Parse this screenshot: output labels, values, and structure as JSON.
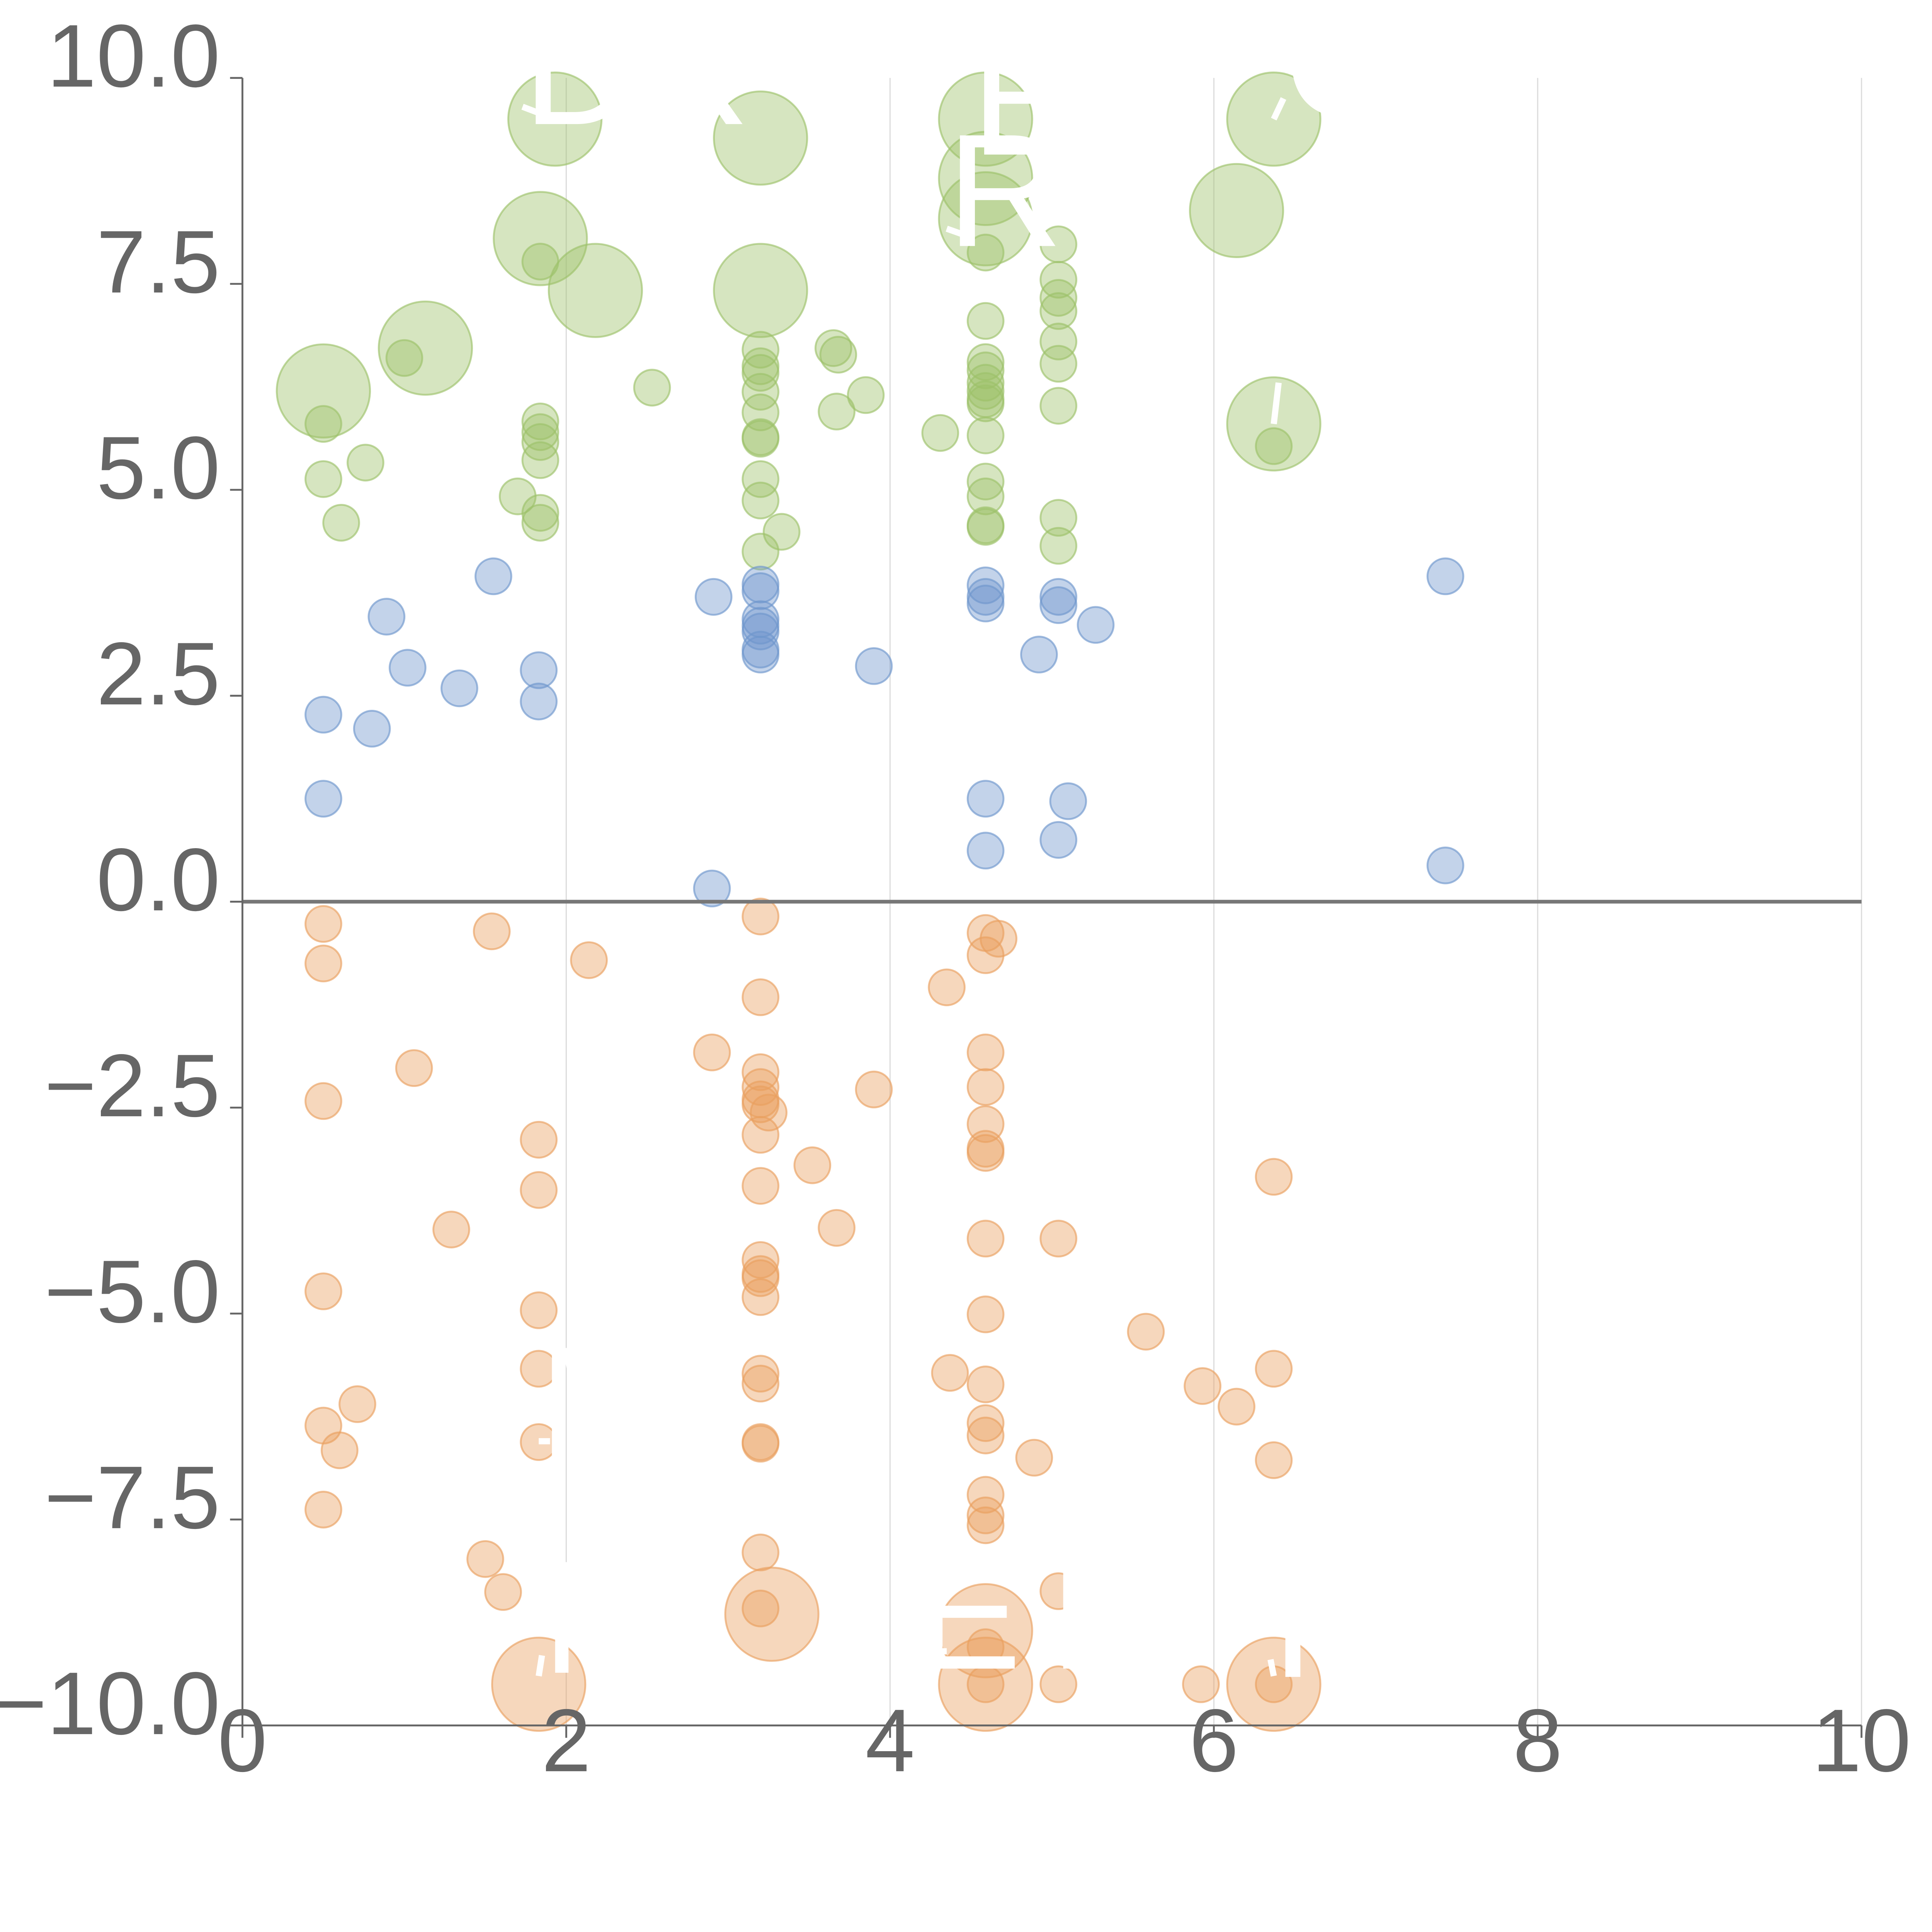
{
  "chart_data": {
    "type": "scatter",
    "title": "",
    "xlabel": "",
    "ylabel": "",
    "xlim": [
      0,
      10
    ],
    "ylim": [
      -10,
      10
    ],
    "xticks": [
      0,
      2,
      4,
      6,
      8,
      10
    ],
    "xtick_labels": [
      "0",
      "2",
      "4",
      "6",
      "8",
      "10"
    ],
    "yticks": [
      10,
      7.5,
      5,
      2.5,
      0,
      -2.5,
      -5,
      -7.5,
      -10
    ],
    "ytick_labels": [
      "10.0",
      "7.5",
      "5.0",
      "2.5",
      "0.0",
      "−2.5",
      "−5.0",
      "−7.5",
      "−10.0"
    ],
    "vertical_grid": true,
    "zero_line": true,
    "series": [
      {
        "name": "green",
        "color": "#9dc16a",
        "points": [
          [
            0.5,
            6.2,
            2.6
          ],
          [
            1.13,
            6.72,
            2.6
          ],
          [
            1.84,
            8.05,
            2.6
          ],
          [
            1.93,
            9.5,
            2.6
          ],
          [
            2.18,
            7.42,
            2.6
          ],
          [
            3.2,
            9.27,
            2.6
          ],
          [
            3.2,
            7.42,
            2.6
          ],
          [
            4.59,
            9.5,
            2.6
          ],
          [
            4.59,
            8.78,
            2.6
          ],
          [
            4.59,
            8.29,
            2.6
          ],
          [
            6.14,
            8.39,
            2.6
          ],
          [
            6.37,
            9.5,
            2.6
          ],
          [
            6.37,
            5.8,
            2.6
          ],
          [
            0.5,
            5.8,
            1
          ],
          [
            0.5,
            5.13,
            1
          ],
          [
            0.61,
            4.6,
            1
          ],
          [
            0.76,
            5.33,
            1
          ],
          [
            1.0,
            6.6,
            1
          ],
          [
            1.7,
            4.92,
            1
          ],
          [
            1.84,
            7.77,
            1
          ],
          [
            1.84,
            5.83,
            1
          ],
          [
            1.84,
            5.7,
            1
          ],
          [
            1.84,
            5.58,
            1
          ],
          [
            1.84,
            5.36,
            1
          ],
          [
            1.84,
            4.72,
            1
          ],
          [
            1.84,
            4.6,
            1
          ],
          [
            2.53,
            6.24,
            1
          ],
          [
            3.2,
            6.7,
            1
          ],
          [
            3.2,
            6.5,
            1
          ],
          [
            3.2,
            6.42,
            1
          ],
          [
            3.2,
            6.19,
            1
          ],
          [
            3.2,
            5.94,
            1
          ],
          [
            3.2,
            5.64,
            1
          ],
          [
            3.2,
            5.62,
            1
          ],
          [
            3.2,
            5.13,
            1
          ],
          [
            3.2,
            4.87,
            1
          ],
          [
            3.2,
            4.25,
            1
          ],
          [
            3.33,
            4.49,
            1
          ],
          [
            3.65,
            6.72,
            1
          ],
          [
            3.68,
            6.64,
            1
          ],
          [
            3.67,
            5.95,
            1
          ],
          [
            3.85,
            6.15,
            1
          ],
          [
            4.31,
            5.69,
            1
          ],
          [
            4.59,
            7.88,
            1
          ],
          [
            4.59,
            7.05,
            1
          ],
          [
            4.59,
            6.55,
            1
          ],
          [
            4.59,
            6.45,
            1
          ],
          [
            4.59,
            6.3,
            1
          ],
          [
            4.59,
            6.2,
            1
          ],
          [
            4.59,
            6.1,
            1
          ],
          [
            4.59,
            6.05,
            1
          ],
          [
            4.59,
            5.66,
            1
          ],
          [
            4.59,
            5.1,
            1
          ],
          [
            4.59,
            4.92,
            1
          ],
          [
            4.59,
            4.57,
            1
          ],
          [
            4.59,
            4.55,
            1
          ],
          [
            5.04,
            7.98,
            1
          ],
          [
            5.04,
            7.55,
            1
          ],
          [
            5.04,
            7.33,
            1
          ],
          [
            5.04,
            7.17,
            1
          ],
          [
            5.04,
            6.8,
            1
          ],
          [
            5.04,
            6.53,
            1
          ],
          [
            5.04,
            6.02,
            1
          ],
          [
            5.04,
            4.66,
            1
          ],
          [
            5.04,
            4.32,
            1
          ],
          [
            6.37,
            5.53,
            1
          ]
        ]
      },
      {
        "name": "blue",
        "color": "#6f96cd",
        "points": [
          [
            0.5,
            2.27,
            1
          ],
          [
            0.5,
            1.25,
            1
          ],
          [
            0.8,
            2.1,
            1
          ],
          [
            0.89,
            3.46,
            1
          ],
          [
            1.02,
            2.84,
            1
          ],
          [
            1.34,
            2.59,
            1
          ],
          [
            1.55,
            3.95,
            1
          ],
          [
            1.83,
            2.81,
            1
          ],
          [
            1.83,
            2.43,
            1
          ],
          [
            2.91,
            3.7,
            1
          ],
          [
            2.9,
            0.16,
            1
          ],
          [
            3.2,
            3.85,
            1
          ],
          [
            3.2,
            3.77,
            1
          ],
          [
            3.2,
            3.43,
            1
          ],
          [
            3.2,
            3.35,
            1
          ],
          [
            3.2,
            3.28,
            1
          ],
          [
            3.2,
            3.06,
            1
          ],
          [
            3.2,
            3.0,
            1
          ],
          [
            3.9,
            2.86,
            1
          ],
          [
            4.59,
            3.84,
            1
          ],
          [
            4.59,
            3.7,
            1
          ],
          [
            4.59,
            3.62,
            1
          ],
          [
            4.59,
            1.25,
            1
          ],
          [
            4.59,
            0.62,
            1
          ],
          [
            4.92,
            3.0,
            1
          ],
          [
            5.04,
            3.7,
            1
          ],
          [
            5.04,
            3.6,
            1
          ],
          [
            5.04,
            0.75,
            1
          ],
          [
            5.1,
            1.22,
            1
          ],
          [
            5.27,
            3.36,
            1
          ],
          [
            7.43,
            3.95,
            1
          ],
          [
            7.43,
            0.44,
            1
          ]
        ]
      },
      {
        "name": "orange",
        "color": "#ea9f5f",
        "points": [
          [
            0.5,
            -0.27,
            1
          ],
          [
            0.5,
            -0.75,
            1
          ],
          [
            0.5,
            -2.42,
            1
          ],
          [
            0.5,
            -4.73,
            1
          ],
          [
            0.5,
            -6.36,
            1
          ],
          [
            0.5,
            -7.38,
            1
          ],
          [
            0.6,
            -6.66,
            1
          ],
          [
            0.71,
            -6.1,
            1
          ],
          [
            1.06,
            -2.02,
            1
          ],
          [
            1.29,
            -3.98,
            1
          ],
          [
            1.5,
            -7.98,
            1
          ],
          [
            1.54,
            -0.36,
            1
          ],
          [
            1.61,
            -8.38,
            1
          ],
          [
            1.83,
            -2.89,
            1
          ],
          [
            1.83,
            -3.5,
            1
          ],
          [
            1.83,
            -4.96,
            1
          ],
          [
            1.83,
            -5.67,
            1
          ],
          [
            1.83,
            -6.56,
            1
          ],
          [
            2.14,
            -0.71,
            1
          ],
          [
            2.9,
            -1.83,
            1
          ],
          [
            3.2,
            -0.18,
            1
          ],
          [
            3.2,
            -1.16,
            1
          ],
          [
            3.2,
            -2.07,
            1
          ],
          [
            3.2,
            -2.25,
            1
          ],
          [
            3.2,
            -2.4,
            1
          ],
          [
            3.2,
            -2.46,
            1
          ],
          [
            3.25,
            -2.56,
            1
          ],
          [
            3.2,
            -2.83,
            1
          ],
          [
            3.2,
            -3.45,
            1
          ],
          [
            3.2,
            -4.35,
            1
          ],
          [
            3.2,
            -4.52,
            1
          ],
          [
            3.2,
            -4.57,
            1
          ],
          [
            3.2,
            -4.8,
            1
          ],
          [
            3.2,
            -5.73,
            1
          ],
          [
            3.2,
            -5.85,
            1
          ],
          [
            3.2,
            -6.56,
            1
          ],
          [
            3.2,
            -6.58,
            1
          ],
          [
            3.2,
            -7.9,
            1
          ],
          [
            3.2,
            -8.58,
            1
          ],
          [
            3.52,
            -3.2,
            1
          ],
          [
            3.67,
            -3.96,
            1
          ],
          [
            3.9,
            -2.28,
            1
          ],
          [
            4.35,
            -1.04,
            1
          ],
          [
            4.37,
            -5.72,
            1
          ],
          [
            4.59,
            -0.38,
            1
          ],
          [
            4.67,
            -0.45,
            1
          ],
          [
            4.59,
            -0.65,
            1
          ],
          [
            4.59,
            -1.83,
            1
          ],
          [
            4.59,
            -2.25,
            1
          ],
          [
            4.59,
            -2.7,
            1
          ],
          [
            4.59,
            -3.0,
            1
          ],
          [
            4.59,
            -3.05,
            1
          ],
          [
            4.59,
            -4.09,
            1
          ],
          [
            4.59,
            -5.01,
            1
          ],
          [
            4.59,
            -5.86,
            1
          ],
          [
            4.59,
            -6.33,
            1
          ],
          [
            4.59,
            -6.48,
            1
          ],
          [
            4.59,
            -7.2,
            1
          ],
          [
            4.59,
            -7.45,
            1
          ],
          [
            4.59,
            -7.57,
            1
          ],
          [
            4.59,
            -9.05,
            1
          ],
          [
            4.59,
            -9.5,
            1
          ],
          [
            4.89,
            -6.75,
            1
          ],
          [
            5.04,
            -4.09,
            1
          ],
          [
            5.04,
            -8.37,
            1
          ],
          [
            5.04,
            -9.5,
            1
          ],
          [
            5.58,
            -5.22,
            1
          ],
          [
            5.92,
            -9.5,
            1
          ],
          [
            5.93,
            -5.88,
            1
          ],
          [
            6.14,
            -6.13,
            1
          ],
          [
            6.37,
            -3.34,
            1
          ],
          [
            6.37,
            -5.67,
            1
          ],
          [
            6.37,
            -6.78,
            1
          ],
          [
            6.37,
            -9.5,
            1
          ],
          [
            3.27,
            -8.65,
            2.6
          ],
          [
            4.59,
            -8.85,
            2.6
          ],
          [
            4.59,
            -9.5,
            2.6
          ],
          [
            1.83,
            -9.5,
            2.6
          ],
          [
            6.37,
            -9.5,
            2.6
          ]
        ]
      }
    ],
    "annotations": [
      {
        "text": "DX",
        "x": 1.93,
        "y": 9.5,
        "tx": 1.73,
        "ty": 9.65
      },
      {
        "text": "E",
        "x": 4.5,
        "y": 9.15,
        "tx": 4.5,
        "ty": 9.28
      },
      {
        "text": "R",
        "x": 4.45,
        "y": 8.1,
        "tx": 4.35,
        "ty": 8.17
      },
      {
        "text": "C",
        "x": 6.37,
        "y": 9.5,
        "tx": 6.43,
        "ty": 9.75
      },
      {
        "text": "Y",
        "x": 6.37,
        "y": 5.8,
        "tx": 6.4,
        "ty": 6.3
      },
      {
        "text": "M",
        "x": 1.9,
        "y": -6.55,
        "tx": 1.83,
        "ty": -6.55
      },
      {
        "text": "ET",
        "x": 4.35,
        "y": -9.1,
        "tx": 4.15,
        "ty": -9.1
      },
      {
        "text": "I",
        "x": 6.37,
        "y": -9.4,
        "tx": 6.35,
        "ty": -9.2
      },
      {
        "text": "N",
        "x": 1.83,
        "y": -9.4,
        "tx": 1.85,
        "ty": -9.15
      }
    ]
  }
}
